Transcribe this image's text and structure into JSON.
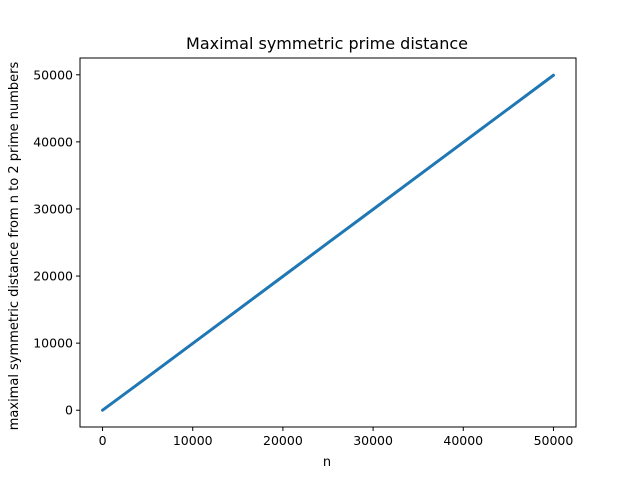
{
  "chart_data": {
    "type": "line",
    "title": "Maximal symmetric prime distance",
    "xlabel": "n",
    "ylabel": "maximal symmetric distance from n to 2 prime numbers",
    "xlim": [
      -2500,
      52500
    ],
    "ylim": [
      -2500,
      52500
    ],
    "x_ticks": [
      0,
      10000,
      20000,
      30000,
      40000,
      50000
    ],
    "y_ticks": [
      0,
      10000,
      20000,
      30000,
      40000,
      50000
    ],
    "x_tick_labels": [
      "0",
      "10000",
      "20000",
      "30000",
      "40000",
      "50000"
    ],
    "y_tick_labels": [
      "0",
      "10000",
      "20000",
      "30000",
      "40000",
      "50000"
    ],
    "grid": false,
    "series": [
      {
        "color": "#1f77b4",
        "x": [
          0,
          5000,
          10000,
          15000,
          20000,
          25000,
          30000,
          35000,
          40000,
          45000,
          50000
        ],
        "y": [
          0,
          4960,
          9960,
          14950,
          19950,
          24950,
          29940,
          34940,
          39940,
          44930,
          49930
        ]
      }
    ]
  }
}
